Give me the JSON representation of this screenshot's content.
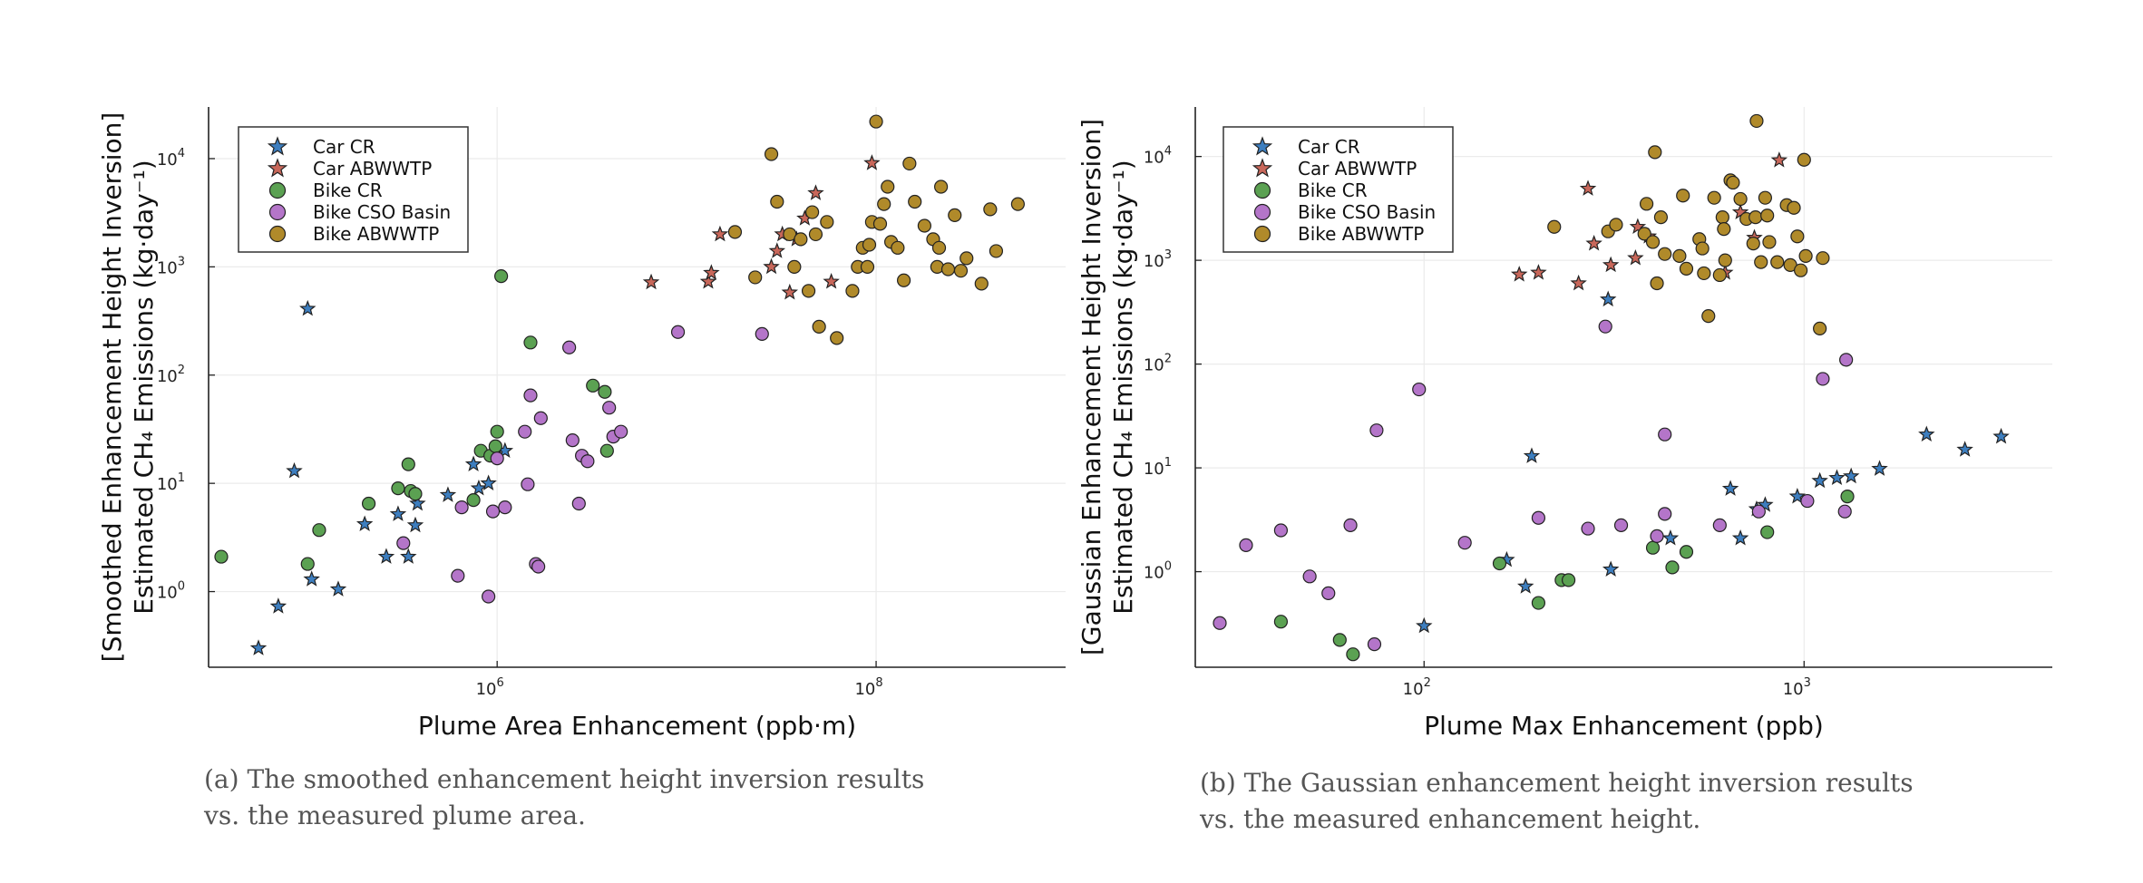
{
  "chart_data": [
    {
      "type": "scatter",
      "title": "",
      "xlabel": "Plume Area Enhancement (ppb·m)",
      "ylabel_line1": "[Smoothed Enhancement Height Inversion]",
      "ylabel_line2": "Estimated CH₄ Emissions (kg·day⁻¹)",
      "xscale": "log",
      "yscale": "log",
      "xlim": [
        30000,
        1000000000
      ],
      "ylim": [
        0.2,
        30000
      ],
      "x_ticks": [
        {
          "value": 1000000,
          "base": "10",
          "exp": "6"
        },
        {
          "value": 100000000,
          "base": "10",
          "exp": "8"
        }
      ],
      "y_ticks": [
        {
          "value": 1,
          "base": "10",
          "exp": "0"
        },
        {
          "value": 10,
          "base": "10",
          "exp": "1"
        },
        {
          "value": 100,
          "base": "10",
          "exp": "2"
        },
        {
          "value": 1000,
          "base": "10",
          "exp": "3"
        },
        {
          "value": 10000,
          "base": "10",
          "exp": "4"
        }
      ],
      "grid": true,
      "legend": "top-left",
      "series": [
        {
          "name": "Car CR",
          "marker": "star",
          "color": "#3d7ebf",
          "points": [
            [
              55000,
              0.3
            ],
            [
              70000,
              0.73
            ],
            [
              85000,
              13
            ],
            [
              100000,
              410
            ],
            [
              105000,
              1.3
            ],
            [
              145000,
              1.05
            ],
            [
              200000,
              4.2
            ],
            [
              260000,
              2.1
            ],
            [
              300000,
              5.2
            ],
            [
              340000,
              2.1
            ],
            [
              370000,
              4.1
            ],
            [
              380000,
              6.5
            ],
            [
              550000,
              7.8
            ],
            [
              750000,
              15
            ],
            [
              800000,
              9
            ],
            [
              900000,
              10
            ],
            [
              1000000,
              20
            ],
            [
              1100000,
              20
            ]
          ]
        },
        {
          "name": "Car ABWWTP",
          "marker": "star",
          "color": "#c8675a",
          "points": [
            [
              6500000,
              720
            ],
            [
              13000000,
              730
            ],
            [
              13500000,
              880
            ],
            [
              15000000,
              2000
            ],
            [
              28000000,
              1000
            ],
            [
              30000000,
              1400
            ],
            [
              32000000,
              2000
            ],
            [
              35000000,
              580
            ],
            [
              38000000,
              1800
            ],
            [
              42000000,
              2800
            ],
            [
              48000000,
              4800
            ],
            [
              58000000,
              730
            ],
            [
              95000000,
              9100
            ]
          ]
        },
        {
          "name": "Bike CR",
          "marker": "circle",
          "color": "#5ba152",
          "points": [
            [
              35000,
              2.1
            ],
            [
              100000,
              1.8
            ],
            [
              115000,
              3.7
            ],
            [
              210000,
              6.5
            ],
            [
              300000,
              9
            ],
            [
              340000,
              15
            ],
            [
              350000,
              8.5
            ],
            [
              370000,
              8
            ],
            [
              750000,
              7
            ],
            [
              820000,
              20
            ],
            [
              920000,
              18
            ],
            [
              980000,
              22
            ],
            [
              1000000,
              30
            ],
            [
              1050000,
              820
            ],
            [
              1500000,
              200
            ],
            [
              3200000,
              80
            ],
            [
              3700000,
              70
            ],
            [
              3800000,
              20
            ]
          ]
        },
        {
          "name": "Bike CSO Basin",
          "marker": "circle",
          "color": "#b475c9",
          "points": [
            [
              320000,
              2.8
            ],
            [
              620000,
              1.4
            ],
            [
              650000,
              6
            ],
            [
              900000,
              0.9
            ],
            [
              950000,
              5.5
            ],
            [
              1000000,
              17
            ],
            [
              1100000,
              6
            ],
            [
              1400000,
              30
            ],
            [
              1450000,
              9.8
            ],
            [
              1500000,
              65
            ],
            [
              1600000,
              1.8
            ],
            [
              1650000,
              1.7
            ],
            [
              1700000,
              40
            ],
            [
              2400000,
              180
            ],
            [
              2500000,
              25
            ],
            [
              2700000,
              6.5
            ],
            [
              2800000,
              18
            ],
            [
              3000000,
              16
            ],
            [
              3900000,
              50
            ],
            [
              4100000,
              27
            ],
            [
              4500000,
              30
            ],
            [
              9000000,
              250
            ],
            [
              25000000,
              240
            ]
          ]
        },
        {
          "name": "Bike ABWWTP",
          "marker": "circle",
          "color": "#b08a2a",
          "points": [
            [
              18000000,
              2100
            ],
            [
              23000000,
              800
            ],
            [
              28000000,
              11000
            ],
            [
              30000000,
              4000
            ],
            [
              35000000,
              2000
            ],
            [
              37000000,
              1000
            ],
            [
              40000000,
              1800
            ],
            [
              44000000,
              600
            ],
            [
              46000000,
              3200
            ],
            [
              48000000,
              2000
            ],
            [
              50000000,
              280
            ],
            [
              55000000,
              2600
            ],
            [
              62000000,
              220
            ],
            [
              75000000,
              600
            ],
            [
              80000000,
              1000
            ],
            [
              85000000,
              1500
            ],
            [
              90000000,
              1000
            ],
            [
              92000000,
              1600
            ],
            [
              95000000,
              2600
            ],
            [
              100000000,
              22000
            ],
            [
              105000000,
              2500
            ],
            [
              110000000,
              3800
            ],
            [
              115000000,
              5500
            ],
            [
              120000000,
              1700
            ],
            [
              130000000,
              1500
            ],
            [
              140000000,
              750
            ],
            [
              150000000,
              9000
            ],
            [
              160000000,
              4000
            ],
            [
              180000000,
              2400
            ],
            [
              200000000,
              1800
            ],
            [
              210000000,
              1000
            ],
            [
              215000000,
              1500
            ],
            [
              220000000,
              5500
            ],
            [
              240000000,
              950
            ],
            [
              260000000,
              3000
            ],
            [
              280000000,
              920
            ],
            [
              300000000,
              1200
            ],
            [
              360000000,
              700
            ],
            [
              400000000,
              3400
            ],
            [
              430000000,
              1400
            ],
            [
              560000000,
              3800
            ]
          ]
        }
      ]
    },
    {
      "type": "scatter",
      "title": "",
      "xlabel": "Plume Max Enhancement (ppb)",
      "ylabel_line1": "[Gaussian Enhancement Height Inversion]",
      "ylabel_line2": "Estimated CH₄ Emissions (kg·day⁻¹)",
      "xscale": "log",
      "yscale": "log",
      "xlim": [
        25,
        4500
      ],
      "ylim": [
        0.12,
        30000
      ],
      "x_ticks": [
        {
          "value": 100,
          "base": "10",
          "exp": "2"
        },
        {
          "value": 1000,
          "base": "10",
          "exp": "3"
        }
      ],
      "y_ticks": [
        {
          "value": 1,
          "base": "10",
          "exp": "0"
        },
        {
          "value": 10,
          "base": "10",
          "exp": "1"
        },
        {
          "value": 100,
          "base": "10",
          "exp": "2"
        },
        {
          "value": 1000,
          "base": "10",
          "exp": "3"
        },
        {
          "value": 10000,
          "base": "10",
          "exp": "4"
        }
      ],
      "grid": true,
      "legend": "top-left",
      "series": [
        {
          "name": "Car CR",
          "marker": "star",
          "color": "#3d7ebf",
          "points": [
            [
              100,
              0.3
            ],
            [
              165,
              1.3
            ],
            [
              185,
              0.72
            ],
            [
              192,
              13
            ],
            [
              305,
              420
            ],
            [
              310,
              1.05
            ],
            [
              445,
              2.1
            ],
            [
              640,
              6.3
            ],
            [
              680,
              2.1
            ],
            [
              750,
              4
            ],
            [
              790,
              4.4
            ],
            [
              960,
              5.3
            ],
            [
              1100,
              7.5
            ],
            [
              1220,
              8
            ],
            [
              1330,
              8.3
            ],
            [
              1580,
              9.8
            ],
            [
              2100,
              21
            ],
            [
              2650,
              15
            ],
            [
              3300,
              20
            ]
          ]
        },
        {
          "name": "Car ABWWTP",
          "marker": "star",
          "color": "#c8675a",
          "points": [
            [
              178,
              730
            ],
            [
              200,
              760
            ],
            [
              255,
              600
            ],
            [
              270,
              4900
            ],
            [
              280,
              1450
            ],
            [
              310,
              900
            ],
            [
              360,
              1050
            ],
            [
              365,
              2100
            ],
            [
              390,
              1700
            ],
            [
              620,
              760
            ],
            [
              680,
              2900
            ],
            [
              740,
              1650
            ],
            [
              860,
              9200
            ]
          ]
        },
        {
          "name": "Bike CR",
          "marker": "circle",
          "color": "#5ba152",
          "points": [
            [
              42,
              0.33
            ],
            [
              60,
              0.22
            ],
            [
              65,
              0.16
            ],
            [
              158,
              1.2
            ],
            [
              200,
              0.5
            ],
            [
              230,
              0.83
            ],
            [
              240,
              0.83
            ],
            [
              400,
              1.7
            ],
            [
              450,
              1.1
            ],
            [
              490,
              1.55
            ],
            [
              800,
              2.4
            ],
            [
              1300,
              5.3
            ]
          ]
        },
        {
          "name": "Bike CSO Basin",
          "marker": "circle",
          "color": "#b475c9",
          "points": [
            [
              29,
              0.32
            ],
            [
              34,
              1.8
            ],
            [
              42,
              2.5
            ],
            [
              50,
              0.9
            ],
            [
              56,
              0.62
            ],
            [
              64,
              2.8
            ],
            [
              74,
              0.2
            ],
            [
              75,
              23
            ],
            [
              97,
              57
            ],
            [
              128,
              1.9
            ],
            [
              200,
              3.3
            ],
            [
              270,
              2.6
            ],
            [
              300,
              230
            ],
            [
              330,
              2.8
            ],
            [
              410,
              2.2
            ],
            [
              430,
              3.6
            ],
            [
              430,
              21
            ],
            [
              600,
              2.8
            ],
            [
              760,
              3.8
            ],
            [
              1020,
              4.8
            ],
            [
              1120,
              72
            ],
            [
              1280,
              3.8
            ],
            [
              1290,
              110
            ]
          ]
        },
        {
          "name": "Bike ABWWTP",
          "marker": "circle",
          "color": "#b08a2a",
          "points": [
            [
              220,
              2100
            ],
            [
              305,
              1900
            ],
            [
              320,
              2200
            ],
            [
              380,
              1800
            ],
            [
              385,
              3500
            ],
            [
              400,
              1500
            ],
            [
              405,
              11000
            ],
            [
              410,
              600
            ],
            [
              420,
              2600
            ],
            [
              430,
              1150
            ],
            [
              470,
              1100
            ],
            [
              480,
              4200
            ],
            [
              490,
              830
            ],
            [
              530,
              1600
            ],
            [
              540,
              1300
            ],
            [
              545,
              750
            ],
            [
              560,
              290
            ],
            [
              580,
              4000
            ],
            [
              600,
              720
            ],
            [
              610,
              2600
            ],
            [
              615,
              2000
            ],
            [
              620,
              1000
            ],
            [
              640,
              5900
            ],
            [
              650,
              5600
            ],
            [
              680,
              3900
            ],
            [
              705,
              2500
            ],
            [
              735,
              1450
            ],
            [
              745,
              2600
            ],
            [
              750,
              22000
            ],
            [
              770,
              960
            ],
            [
              790,
              4000
            ],
            [
              800,
              2700
            ],
            [
              810,
              1500
            ],
            [
              850,
              960
            ],
            [
              900,
              3400
            ],
            [
              920,
              900
            ],
            [
              940,
              3200
            ],
            [
              960,
              1700
            ],
            [
              980,
              800
            ],
            [
              1000,
              9300
            ],
            [
              1010,
              1100
            ],
            [
              1100,
              220
            ],
            [
              1120,
              1050
            ]
          ]
        }
      ]
    }
  ],
  "captions": {
    "a": "(a) The smoothed enhancement height inversion results vs. the measured plume area.",
    "b": "(b) The Gaussian enhancement height inversion results vs. the measured enhancement height."
  }
}
